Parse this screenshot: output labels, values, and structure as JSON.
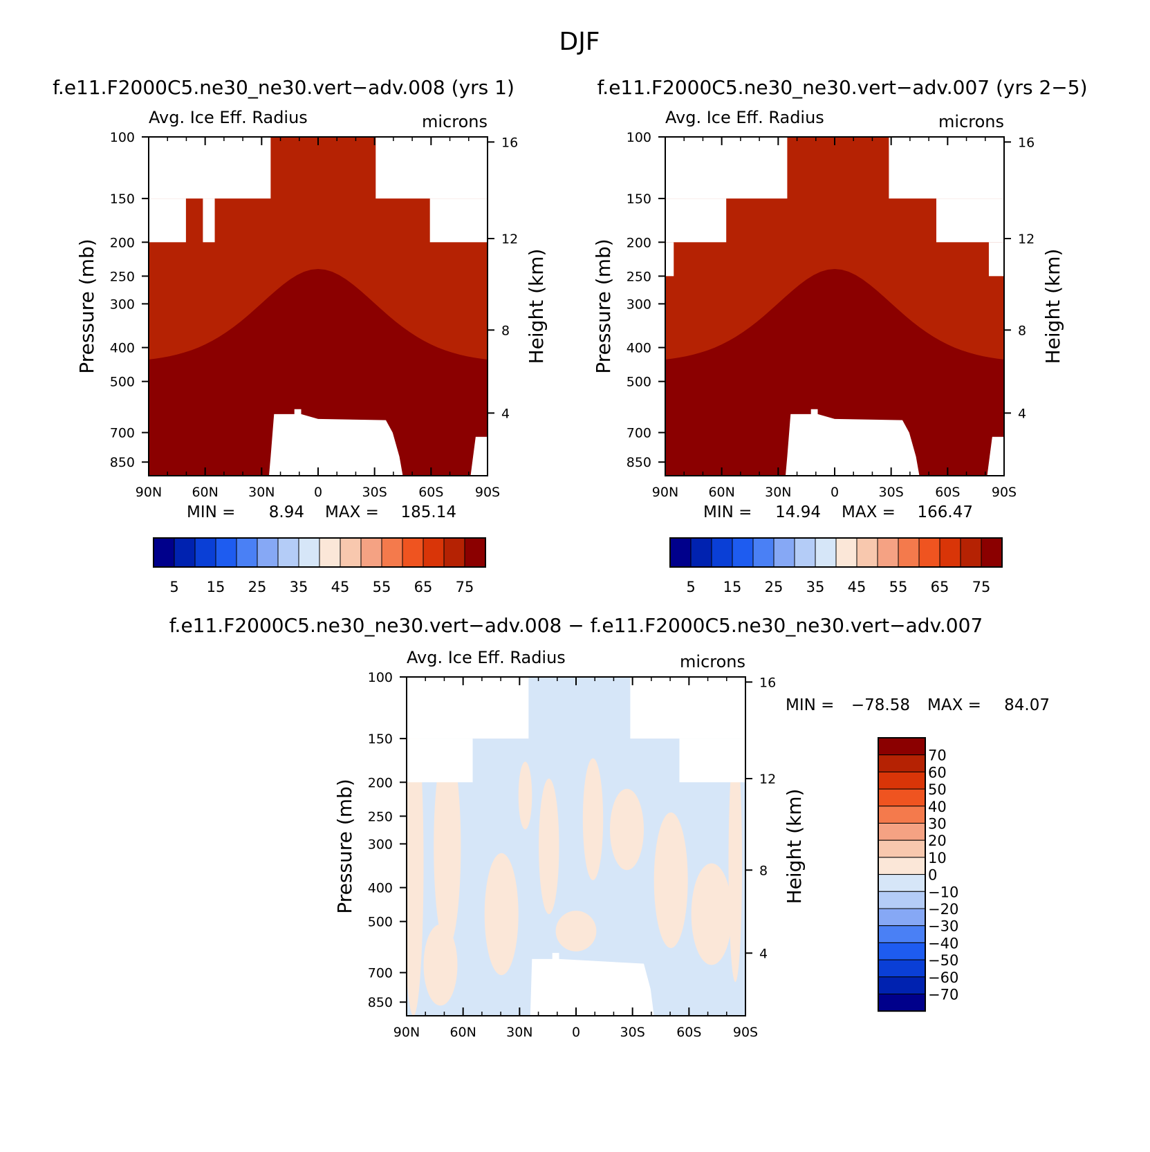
{
  "figure_title": "DJF",
  "chart_data": [
    {
      "type": "heatmap",
      "title": "f.e11.F2000C5.ne30_ne30.vert−adv.008 (yrs 1)",
      "subtitle_left": "Avg. Ice Eff. Radius",
      "subtitle_right": "microns",
      "xlabel": "",
      "ylabel": "Pressure (mb)",
      "ylabel_right": "Height (km)",
      "x_ticks": [
        "90N",
        "60N",
        "30N",
        "0",
        "30S",
        "60S",
        "90S"
      ],
      "y_ticks": [
        "100",
        "150",
        "200",
        "250",
        "300",
        "400",
        "500",
        "700",
        "850"
      ],
      "y_ticks_right": [
        "16",
        "12",
        "8",
        "4"
      ],
      "stats": {
        "min_label": "MIN =",
        "min": "8.94",
        "max_label": "MAX =",
        "max": "185.14"
      },
      "colorbar": {
        "orientation": "horizontal",
        "labels": [
          "5",
          "15",
          "25",
          "35",
          "45",
          "55",
          "65",
          "75"
        ]
      },
      "variant": "a"
    },
    {
      "type": "heatmap",
      "title": "f.e11.F2000C5.ne30_ne30.vert−adv.007 (yrs 2−5)",
      "subtitle_left": "Avg. Ice Eff. Radius",
      "subtitle_right": "microns",
      "xlabel": "",
      "ylabel": "Pressure (mb)",
      "ylabel_right": "Height (km)",
      "x_ticks": [
        "90N",
        "60N",
        "30N",
        "0",
        "30S",
        "60S",
        "90S"
      ],
      "y_ticks": [
        "100",
        "150",
        "200",
        "250",
        "300",
        "400",
        "500",
        "700",
        "850"
      ],
      "y_ticks_right": [
        "16",
        "12",
        "8",
        "4"
      ],
      "stats": {
        "min_label": "MIN =",
        "min": "14.94",
        "max_label": "MAX =",
        "max": "166.47"
      },
      "colorbar": {
        "orientation": "horizontal",
        "labels": [
          "5",
          "15",
          "25",
          "35",
          "45",
          "55",
          "65",
          "75"
        ]
      },
      "variant": "b"
    },
    {
      "type": "heatmap",
      "title": "f.e11.F2000C5.ne30_ne30.vert−adv.008 − f.e11.F2000C5.ne30_ne30.vert−adv.007",
      "subtitle_left": "Avg. Ice Eff. Radius",
      "subtitle_right": "microns",
      "xlabel": "",
      "ylabel": "Pressure (mb)",
      "ylabel_right": "Height (km)",
      "x_ticks": [
        "90N",
        "60N",
        "30N",
        "0",
        "30S",
        "60S",
        "90S"
      ],
      "y_ticks": [
        "100",
        "150",
        "200",
        "250",
        "300",
        "400",
        "500",
        "700",
        "850"
      ],
      "y_ticks_right": [
        "16",
        "12",
        "8",
        "4"
      ],
      "stats": {
        "min_label": "MIN =",
        "min": "−78.58",
        "max_label": "MAX =",
        "max": "84.07"
      },
      "colorbar": {
        "orientation": "vertical",
        "labels": [
          "70",
          "60",
          "50",
          "40",
          "30",
          "20",
          "10",
          "0",
          "−10",
          "−20",
          "−30",
          "−40",
          "−50",
          "−60",
          "−70"
        ]
      },
      "variant": "diff"
    }
  ],
  "palette": [
    "#00008b",
    "#0022b0",
    "#0a3fd6",
    "#1e5cf0",
    "#4a80f5",
    "#86a8f5",
    "#b4ccf7",
    "#d6e6f8",
    "#fbe7d8",
    "#f8c8ae",
    "#f5a283",
    "#f47a4c",
    "#ef5420",
    "#d93508",
    "#b52203",
    "#8b0000"
  ],
  "diff_palette": [
    "#00008b",
    "#0022b0",
    "#0a3fd6",
    "#1e5cf0",
    "#4a80f5",
    "#86a8f5",
    "#b4ccf7",
    "#d6e6f8",
    "#fbe7d8",
    "#f8c8ae",
    "#f5a283",
    "#f47a4c",
    "#ef5420",
    "#d93508",
    "#b52203",
    "#8b0000"
  ]
}
